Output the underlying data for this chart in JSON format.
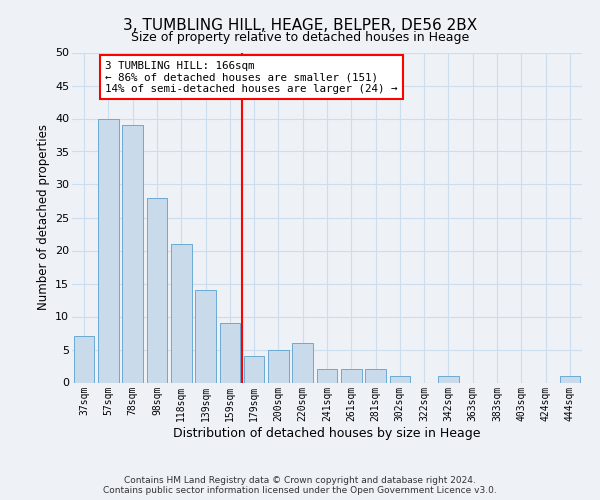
{
  "title": "3, TUMBLING HILL, HEAGE, BELPER, DE56 2BX",
  "subtitle": "Size of property relative to detached houses in Heage",
  "xlabel": "Distribution of detached houses by size in Heage",
  "ylabel": "Number of detached properties",
  "categories": [
    "37sqm",
    "57sqm",
    "78sqm",
    "98sqm",
    "118sqm",
    "139sqm",
    "159sqm",
    "179sqm",
    "200sqm",
    "220sqm",
    "241sqm",
    "261sqm",
    "281sqm",
    "302sqm",
    "322sqm",
    "342sqm",
    "363sqm",
    "383sqm",
    "403sqm",
    "424sqm",
    "444sqm"
  ],
  "values": [
    7,
    40,
    39,
    28,
    21,
    14,
    9,
    4,
    5,
    6,
    2,
    2,
    2,
    1,
    0,
    1,
    0,
    0,
    0,
    0,
    1
  ],
  "bar_color": "#c9daea",
  "bar_edge_color": "#6aaad4",
  "vline_x_index": 6,
  "vline_color": "red",
  "annotation_text": "3 TUMBLING HILL: 166sqm\n← 86% of detached houses are smaller (151)\n14% of semi-detached houses are larger (24) →",
  "annotation_box_color": "white",
  "annotation_box_edge_color": "red",
  "ylim": [
    0,
    50
  ],
  "yticks": [
    0,
    5,
    10,
    15,
    20,
    25,
    30,
    35,
    40,
    45,
    50
  ],
  "grid_color": "#ccddee",
  "footer_line1": "Contains HM Land Registry data © Crown copyright and database right 2024.",
  "footer_line2": "Contains public sector information licensed under the Open Government Licence v3.0.",
  "background_color": "#eef2f7",
  "plot_bg_color": "#eef2f7"
}
